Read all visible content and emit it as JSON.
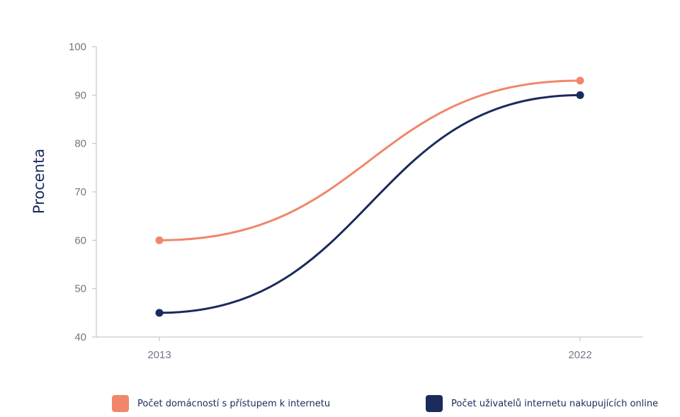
{
  "chart_data": {
    "type": "line",
    "x": [
      "2013",
      "2022"
    ],
    "ylabel": "Procenta",
    "xlabel": "",
    "ylim": [
      40,
      100
    ],
    "yticks": [
      40,
      50,
      60,
      70,
      80,
      90,
      100
    ],
    "grid": false,
    "legend_position": "bottom",
    "series": [
      {
        "name": "Počet domácností s přístupem k internetu",
        "values": [
          60,
          93
        ],
        "color": "#f0876a"
      },
      {
        "name": "Počet uživatelů internetu nakupujících online",
        "values": [
          45,
          90
        ],
        "color": "#1a2b5c"
      }
    ]
  }
}
